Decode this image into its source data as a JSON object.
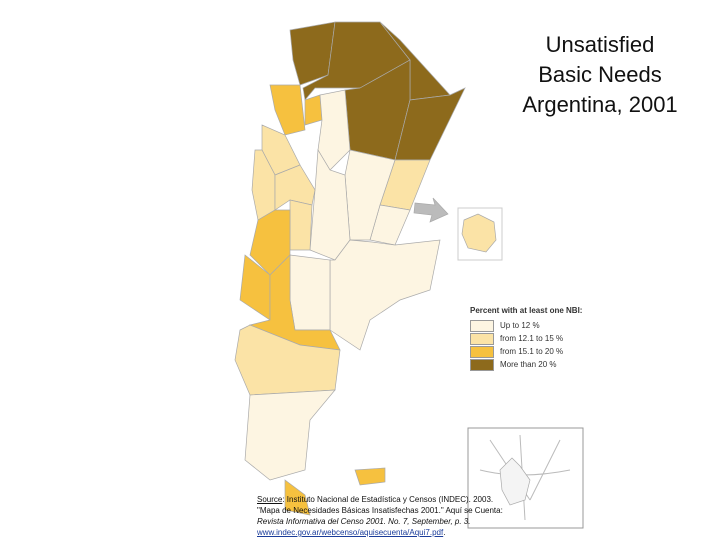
{
  "title": {
    "lines": [
      "Unsatisfied",
      "Basic Needs",
      "Argentina, 2001"
    ]
  },
  "legend": {
    "title": "Percent with at least one NBI:",
    "items": [
      {
        "label": "Up to 12 %",
        "color": "#fdf5e2"
      },
      {
        "label": "from 12.1 to 15 %",
        "color": "#fbe3a6"
      },
      {
        "label": "from 15.1 to 20 %",
        "color": "#f6c13f"
      },
      {
        "label": "More than 20 %",
        "color": "#8d6a1c"
      }
    ]
  },
  "source": {
    "label": "Source",
    "lines": [
      ": Instituto Nacional de Estadística y Censos (INDEC). 2003.",
      "\"Mapa de Necesidades Básicas Insatisfechas 2001.\" Aquí se Cuenta:",
      "Revista Informativa del Censo 2001. No. 7, September, p. 3."
    ],
    "url": "www.indec.gov.ar/webcenso/aquisecuenta/Aqui7.pdf",
    "end": "."
  }
}
